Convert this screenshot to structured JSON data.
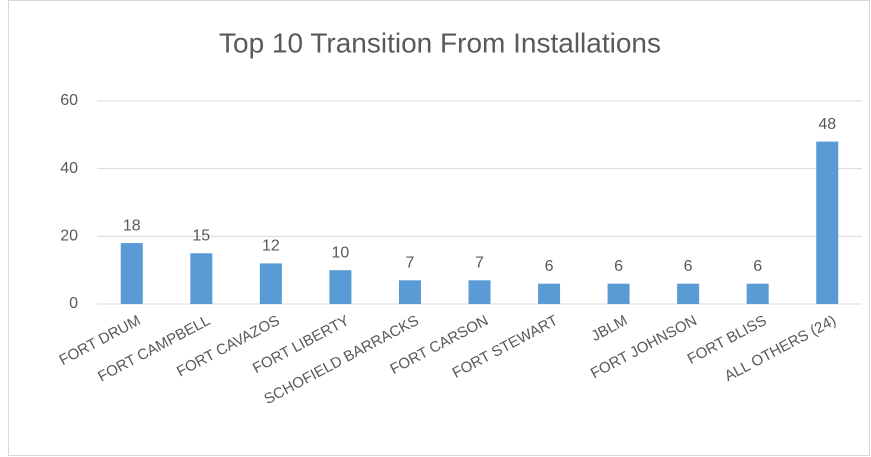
{
  "chart_data": {
    "type": "bar",
    "title": "Top 10 Transition From Installations",
    "categories": [
      "FORT DRUM",
      "FORT CAMPBELL",
      "FORT CAVAZOS",
      "FORT LIBERTY",
      "SCHOFIELD BARRACKS",
      "FORT CARSON",
      "FORT STEWART",
      "JBLM",
      "FORT JOHNSON",
      "FORT BLISS",
      "ALL OTHERS (24)"
    ],
    "values": [
      18,
      15,
      12,
      10,
      7,
      7,
      6,
      6,
      6,
      6,
      48
    ],
    "color": "#5b9bd5",
    "ylim": [
      0,
      60
    ],
    "yticks": [
      0,
      20,
      40,
      60
    ],
    "grid": true
  }
}
